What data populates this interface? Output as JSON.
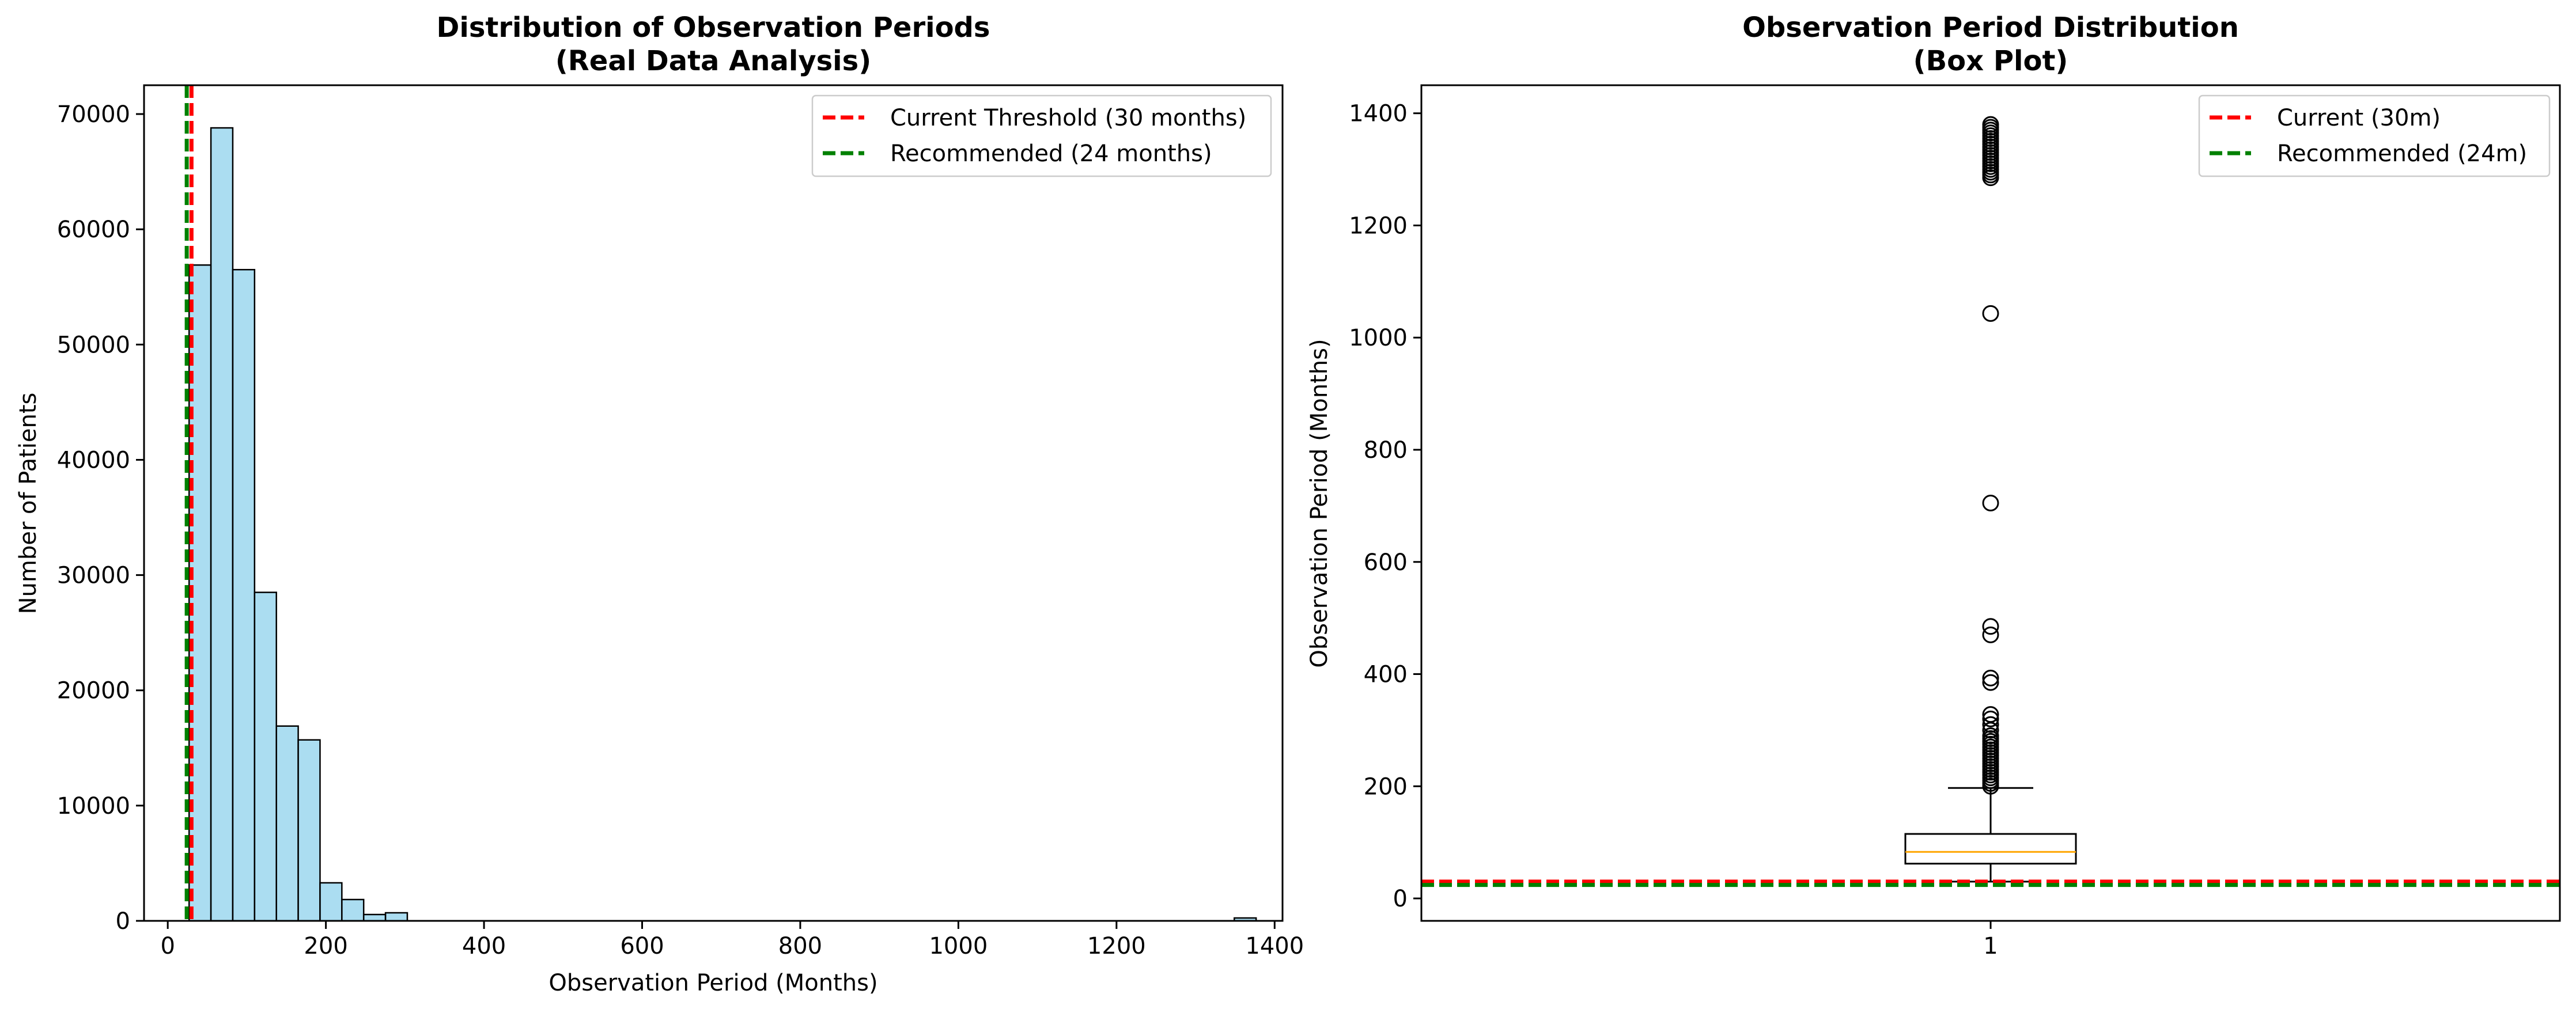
{
  "chart_data": [
    {
      "type": "bar",
      "title": [
        "Distribution of Observation Periods",
        "(Real Data Analysis)"
      ],
      "xlabel": "Observation Period (Months)",
      "ylabel": "Number of Patients",
      "xlim": [
        -30,
        1410
      ],
      "ylim": [
        0,
        72500
      ],
      "xticks": [
        "0",
        "200",
        "400",
        "600",
        "800",
        "1000",
        "1200",
        "1400"
      ],
      "yticks": [
        "0",
        "10000",
        "20000",
        "30000",
        "40000",
        "50000",
        "60000",
        "70000"
      ],
      "bar_color": "#87CEEB",
      "bin_width": 27.6,
      "bin_starts": [
        27,
        54.6,
        82.2,
        109.8,
        137.4,
        165.0,
        192.6,
        220.2,
        247.8,
        275.4,
        1349
      ],
      "values": [
        56900,
        68800,
        56500,
        28500,
        16900,
        15700,
        3300,
        1850,
        550,
        700,
        250
      ],
      "lines": [
        {
          "name": "Current Threshold (30 months)",
          "x": 30,
          "color": "#FF0000"
        },
        {
          "name": "Recommended (24 months)",
          "x": 24,
          "color": "#008000"
        }
      ],
      "legend": "top-right",
      "grid": false
    },
    {
      "type": "box",
      "title": [
        "Observation Period Distribution",
        "(Box Plot)"
      ],
      "xlabel": "",
      "ylabel": "Observation Period (Months)",
      "ylim": [
        -40,
        1450
      ],
      "xticks": [
        "1"
      ],
      "yticks": [
        "0",
        "200",
        "400",
        "600",
        "800",
        "1000",
        "1200",
        "1400"
      ],
      "box": {
        "q1": 62,
        "median": 83,
        "q3": 115,
        "whisker_low": 30,
        "whisker_high": 197,
        "median_color": "#FFA500"
      },
      "outliers": [
        200,
        205,
        210,
        215,
        220,
        225,
        230,
        235,
        240,
        245,
        250,
        255,
        260,
        265,
        270,
        275,
        280,
        285,
        290,
        300,
        310,
        320,
        328,
        385,
        393,
        470,
        485,
        705,
        1043,
        1285,
        1290,
        1295,
        1300,
        1305,
        1310,
        1315,
        1320,
        1325,
        1330,
        1335,
        1340,
        1345,
        1350,
        1355,
        1360,
        1365,
        1370,
        1375,
        1380
      ],
      "lines": [
        {
          "name": "Current (30m)",
          "y": 30,
          "color": "#FF0000"
        },
        {
          "name": "Recommended (24m)",
          "y": 24,
          "color": "#008000"
        }
      ],
      "legend": "top-right",
      "grid": false
    }
  ]
}
